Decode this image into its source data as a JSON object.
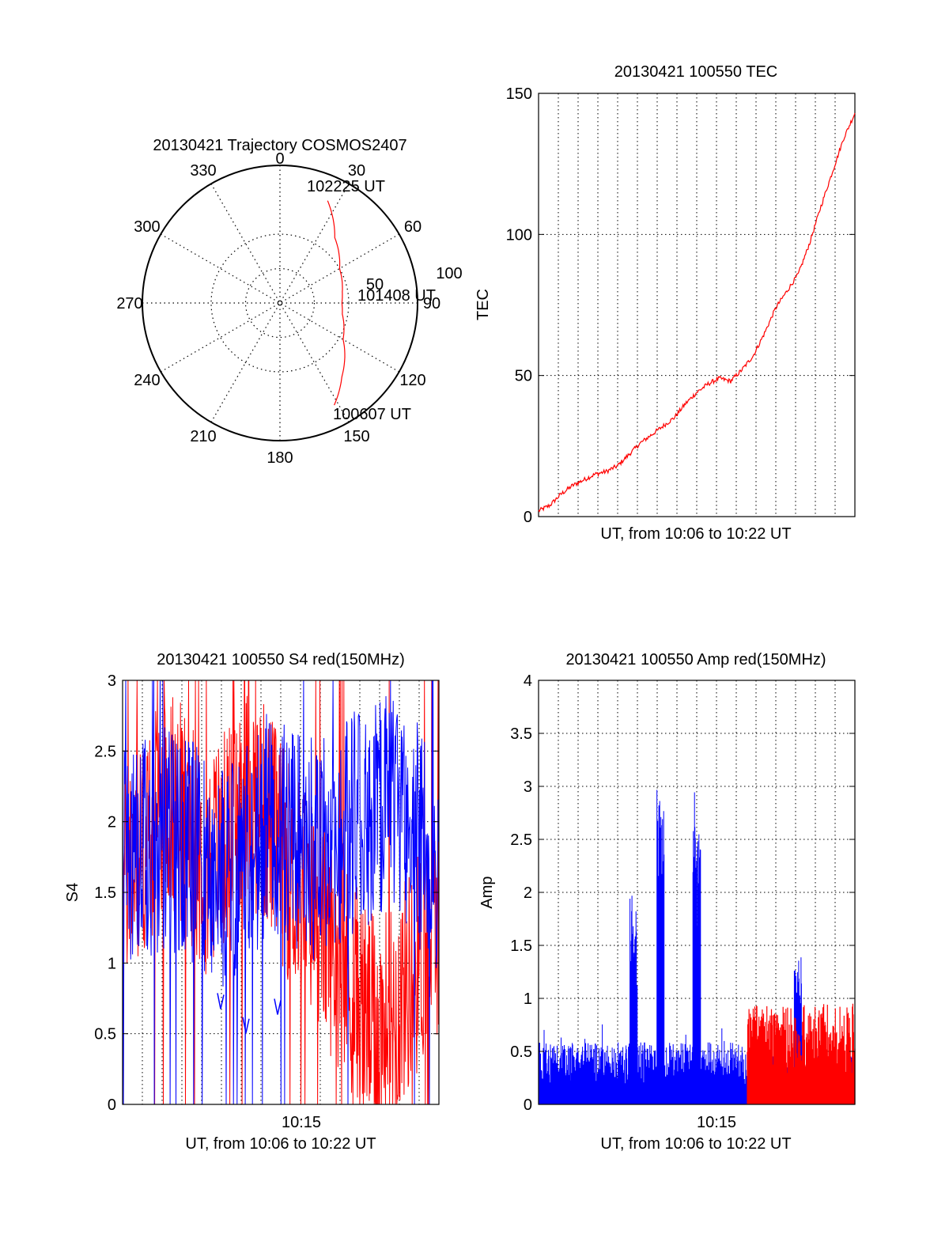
{
  "chart_data": [
    {
      "type": "polar",
      "title": "20130421 Trajectory COSMOS2407",
      "angle_ticks": [
        "0",
        "30",
        "60",
        "90",
        "120",
        "150",
        "180",
        "210",
        "240",
        "270",
        "300",
        "330"
      ],
      "radial_ticks": [
        "50",
        "100"
      ],
      "grid": true,
      "series": [
        {
          "color": "#ff0000",
          "points": [
            [
              25,
              82
            ],
            [
              40,
              62
            ],
            [
              60,
              50
            ],
            [
              80,
              46
            ],
            [
              90,
              45
            ],
            [
              100,
              46
            ],
            [
              120,
              53
            ],
            [
              140,
              70
            ],
            [
              152,
              84
            ]
          ]
        }
      ],
      "annotations": [
        "102225 UT",
        "101408 UT",
        "100607 UT"
      ]
    },
    {
      "type": "line",
      "title": "20130421 100550 TEC",
      "xlabel": "UT, from 10:06 to 10:22 UT",
      "ylabel": "TEC",
      "ylim": [
        0,
        150
      ],
      "yticks": [
        "0",
        "50",
        "100",
        "150"
      ],
      "xlim": [
        10.09,
        10.37
      ],
      "grid": true,
      "series": [
        {
          "color": "#ff0000",
          "x": [
            10.09,
            10.1,
            10.11,
            10.12,
            10.13,
            10.14,
            10.15,
            10.16,
            10.17,
            10.18,
            10.19,
            10.2,
            10.21,
            10.22,
            10.23,
            10.24,
            10.25,
            10.26,
            10.27,
            10.28,
            10.29,
            10.3,
            10.31,
            10.32,
            10.33,
            10.34,
            10.35,
            10.36,
            10.37
          ],
          "y": [
            2,
            4,
            8,
            11,
            13,
            15,
            16,
            18,
            22,
            26,
            29,
            32,
            35,
            40,
            44,
            47,
            49,
            48,
            52,
            57,
            65,
            74,
            80,
            86,
            97,
            110,
            122,
            134,
            143
          ]
        }
      ]
    },
    {
      "type": "line",
      "title": "20130421 100550 S4 red(150MHz)",
      "xlabel": "UT, from 10:06 to 10:22 UT",
      "ylabel": "S4",
      "ylim": [
        0,
        3
      ],
      "yticks": [
        "0",
        "0.5",
        "1",
        "1.5",
        "2",
        "2.5",
        "3"
      ],
      "xticks": [
        "10:15"
      ],
      "grid": true,
      "series": [
        {
          "color": "#ff0000",
          "level": [
            1.6,
            1.8,
            2.2,
            2.0,
            1.7,
            1.9,
            2.2,
            2.0,
            1.6,
            1.4,
            1.1,
            0.8,
            0.5,
            0.7,
            1.0,
            1.3
          ]
        },
        {
          "color": "#0000ff",
          "level": [
            1.7,
            1.8,
            1.9,
            1.8,
            1.7,
            1.6,
            1.8,
            2.0,
            1.9,
            1.8,
            1.9,
            2.0,
            2.1,
            2.2,
            1.9,
            1.7
          ]
        }
      ],
      "annotations_blue": [
        {
          "x": 0.31,
          "y": 0.72
        },
        {
          "x": 0.39,
          "y": 0.55
        },
        {
          "x": 0.49,
          "y": 0.68
        }
      ]
    },
    {
      "type": "line",
      "title": "20130421 100550 Amp red(150MHz)",
      "xlabel": "UT, from 10:06 to 10:22 UT",
      "ylabel": "Amp",
      "ylim": [
        0,
        4
      ],
      "yticks": [
        "0",
        "0.5",
        "1",
        "1.5",
        "2",
        "2.5",
        "3",
        "3.5",
        "4"
      ],
      "xticks": [
        "10:15"
      ],
      "grid": true,
      "series": [
        {
          "color": "#0000ff",
          "baseline": 0.45,
          "spikes": [
            [
              0.3,
              2.0
            ],
            [
              0.385,
              3.0
            ],
            [
              0.5,
              3.0
            ],
            [
              0.82,
              1.4
            ]
          ]
        },
        {
          "color": "#ff0000",
          "baseline": 0.6,
          "range": [
            0.66,
            1.0
          ]
        }
      ]
    }
  ]
}
